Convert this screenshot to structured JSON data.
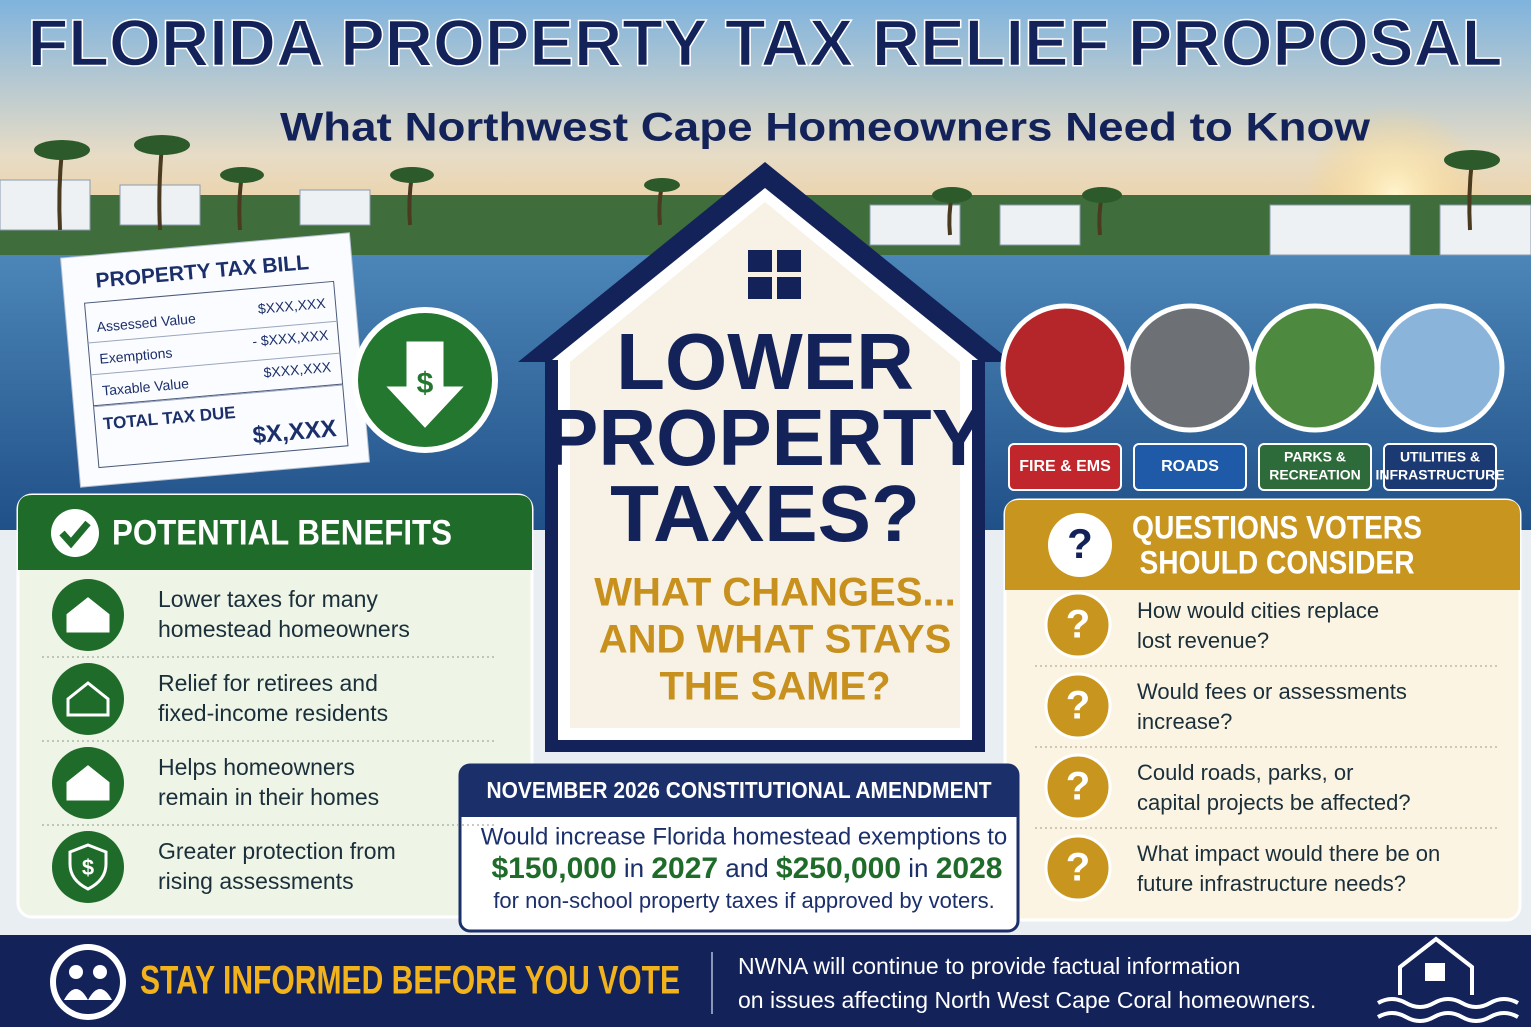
{
  "header": {
    "title": "FLORIDA PROPERTY TAX RELIEF PROPOSAL",
    "subtitle": "What Northwest Cape Homeowners Need to Know"
  },
  "tax_bill": {
    "title": "PROPERTY TAX BILL",
    "rows": [
      [
        "Assessed Value",
        "$XXX,XXX"
      ],
      [
        "Exemptions",
        "- $XXX,XXX"
      ],
      [
        "Taxable Value",
        "$XXX,XXX"
      ]
    ],
    "total_label": "TOTAL TAX DUE",
    "total": "$X,XXX",
    "arrow_icon": "$"
  },
  "house": {
    "headline": [
      "LOWER",
      "PROPERTY",
      "TAXES?"
    ],
    "subhead": [
      "WHAT CHANGES...",
      "AND WHAT STAYS",
      "THE SAME?"
    ]
  },
  "services": [
    [
      "FIRE & EMS"
    ],
    [
      "ROADS"
    ],
    [
      "PARKS &",
      "RECREATION"
    ],
    [
      "UTILITIES &",
      "INFRASTRUCTURE"
    ]
  ],
  "benefits": {
    "title": "POTENTIAL BENEFITS",
    "shield_icon": "$",
    "items": [
      [
        "Lower taxes for many",
        "homestead homeowners"
      ],
      [
        "Relief for retirees and",
        "fixed-income residents"
      ],
      [
        "Helps homeowners",
        "remain in their homes"
      ],
      [
        "Greater protection from",
        "rising assessments"
      ]
    ]
  },
  "questions": {
    "title": [
      "QUESTIONS VOTERS",
      "SHOULD CONSIDER"
    ],
    "icon": "?",
    "items": [
      [
        "How would cities replace",
        "lost revenue?"
      ],
      [
        "Would fees or assessments",
        "increase?"
      ],
      [
        "Could roads, parks, or",
        "capital projects be affected?"
      ],
      [
        "What impact would there be on",
        "future infrastructure needs?"
      ]
    ]
  },
  "amendment": {
    "title": "NOVEMBER 2026 CONSTITUTIONAL AMENDMENT",
    "line1": "Would increase Florida homestead exemptions to",
    "line2": [
      "$150,000",
      " in ",
      "2027",
      " and ",
      "$250,000",
      " in ",
      "2028"
    ],
    "line3": "for non-school property taxes if approved by voters."
  },
  "footer": {
    "cta": "STAY INFORMED BEFORE YOU VOTE",
    "message": [
      "NWNA will continue to provide factual information",
      "on issues affecting North West Cape Coral homeowners."
    ]
  }
}
